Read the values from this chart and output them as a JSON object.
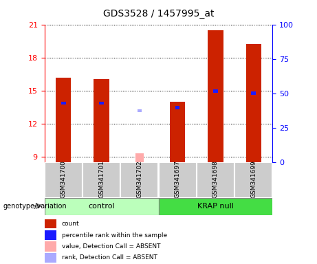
{
  "title": "GDS3528 / 1457995_at",
  "samples": [
    "GSM341700",
    "GSM341701",
    "GSM341702",
    "GSM341697",
    "GSM341698",
    "GSM341699"
  ],
  "ylim_left": [
    8.5,
    21
  ],
  "yticks_left": [
    9,
    12,
    15,
    18,
    21
  ],
  "ylim_right": [
    0,
    100
  ],
  "yticks_right": [
    0,
    25,
    50,
    75,
    100
  ],
  "count_values": [
    16.2,
    16.1,
    9.3,
    14.0,
    20.5,
    19.3
  ],
  "rank_values": [
    13.9,
    13.9,
    null,
    13.5,
    15.0,
    14.8
  ],
  "absent_index": 2,
  "absent_rank_value": 13.2,
  "bar_color_count": "#cc2200",
  "bar_color_rank": "#1a1aff",
  "bar_color_absent_value": "#ffaaaa",
  "bar_color_absent_rank": "#aaaaff",
  "group_color_control": "#bbffbb",
  "group_color_krap": "#44dd44",
  "legend_items": [
    {
      "label": "count",
      "color": "#cc2200"
    },
    {
      "label": "percentile rank within the sample",
      "color": "#1a1aff"
    },
    {
      "label": "value, Detection Call = ABSENT",
      "color": "#ffaaaa"
    },
    {
      "label": "rank, Detection Call = ABSENT",
      "color": "#aaaaff"
    }
  ],
  "genotype_label": "genotype/variation"
}
